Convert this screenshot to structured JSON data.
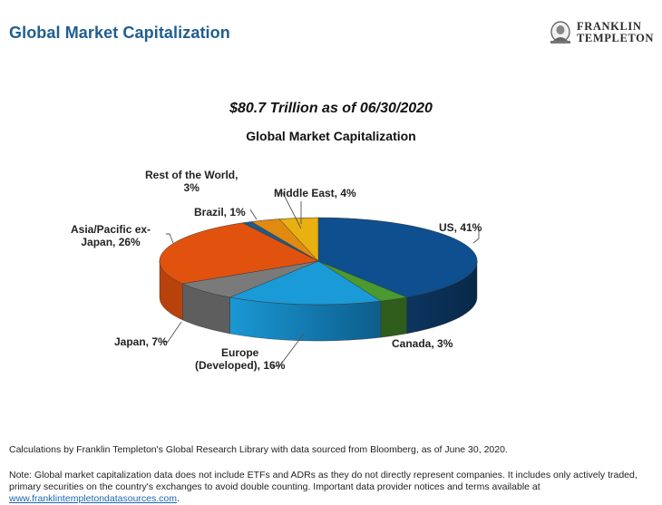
{
  "header": {
    "page_title": "Global Market Capitalization",
    "logo": {
      "line1": "FRANKLIN",
      "line2": "TEMPLETON",
      "icon": "franklin-portrait-icon"
    }
  },
  "chart": {
    "subtitle": "$80.7 Trillion as of 06/30/2020",
    "title": "Global Market Capitalization"
  },
  "labels": {
    "us": "US, 41%",
    "canada": "Canada, 3%",
    "europe_line1": "Europe",
    "europe_line2": "(Developed), 16%",
    "japan": "Japan, 7%",
    "asia_line1": "Asia/Pacific ex-",
    "asia_line2": "Japan, 26%",
    "brazil": "Brazil, 1%",
    "row_line1": "Rest of the World,",
    "row_line2": "3%",
    "middle_east": "Middle East, 4%"
  },
  "footer": {
    "source": "Calculations by Franklin Templeton's Global Research Library with data sourced from Bloomberg, as of June 30, 2020.",
    "note_text": "Note: Global market capitalization data does not include ETFs and ADRs as they do not directly represent companies. It includes only actively traded, primary securities on the country's exchanges to avoid double counting. Important data provider notices and terms available at ",
    "note_link": "www.franklintempletondatasources.com",
    "note_end": "."
  },
  "colors": {
    "title_blue": "#1f5d92",
    "link_blue": "#1a66b3"
  },
  "chart_data": {
    "type": "pie",
    "title": "Global Market Capitalization",
    "subtitle": "$80.7 Trillion as of 06/30/2020",
    "total": "$80.7 Trillion",
    "as_of": "06/30/2020",
    "categories": [
      "US",
      "Canada",
      "Europe (Developed)",
      "Japan",
      "Asia/Pacific ex-Japan",
      "Brazil",
      "Rest of the World",
      "Middle East"
    ],
    "values": [
      41,
      3,
      16,
      7,
      26,
      1,
      3,
      4
    ],
    "unit": "%",
    "colors": [
      "#0d4f8f",
      "#4a9a2f",
      "#1a9ad6",
      "#7a7a7a",
      "#e0520e",
      "#1d5a8c",
      "#e08a12",
      "#e8b010"
    ],
    "style": "3d-pie",
    "start_angle": "12 o'clock, clockwise",
    "legend": "none (data labels with leader lines)"
  }
}
